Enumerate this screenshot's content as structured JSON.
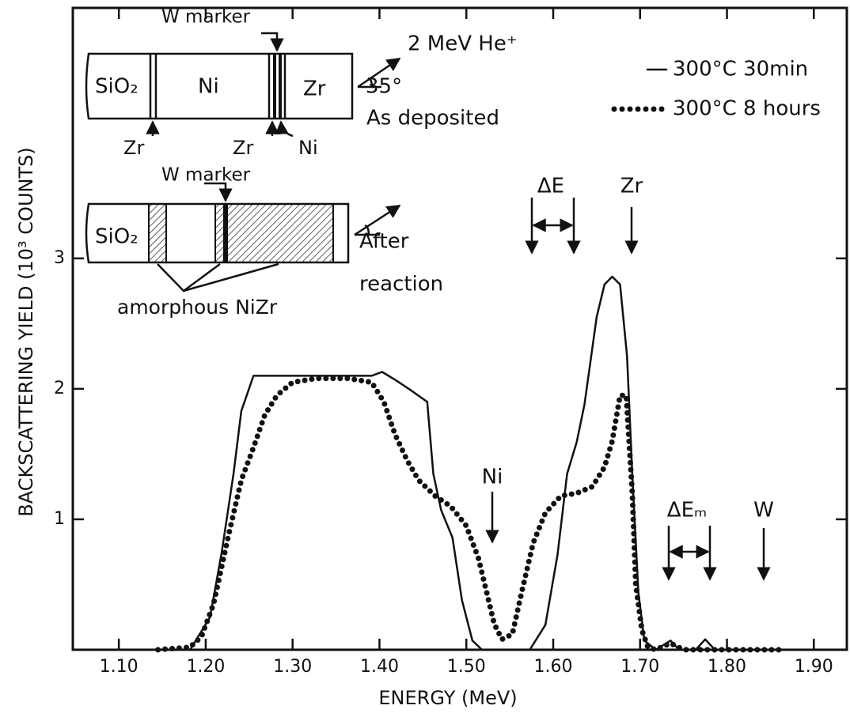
{
  "chart_data": {
    "type": "line",
    "x_label": "ENERGY (MeV)",
    "y_label": "BACKSCATTERING YIELD (10³ COUNTS)",
    "xlim": [
      1.047,
      1.938
    ],
    "ylim": [
      0,
      4.92
    ],
    "xticks": [
      {
        "value": 1.1,
        "label": "1.10"
      },
      {
        "value": 1.2,
        "label": "1.20"
      },
      {
        "value": 1.3,
        "label": "1.30"
      },
      {
        "value": 1.4,
        "label": "1.40"
      },
      {
        "value": 1.5,
        "label": "1.50"
      },
      {
        "value": 1.6,
        "label": "1.60"
      },
      {
        "value": 1.7,
        "label": "1.70"
      },
      {
        "value": 1.8,
        "label": "1.80"
      },
      {
        "value": 1.9,
        "label": "1.90"
      }
    ],
    "yticks": [
      1,
      2,
      3
    ],
    "legend": "upper right",
    "series": [
      {
        "name": "300°C  30min",
        "style": "solid",
        "color": "#111111",
        "x": [
          1.047,
          1.182,
          1.205,
          1.218,
          1.232,
          1.241,
          1.255,
          1.391,
          1.403,
          1.418,
          1.436,
          1.455,
          1.462,
          1.471,
          1.484,
          1.495,
          1.507,
          1.518,
          1.573,
          1.591,
          1.605,
          1.616,
          1.627,
          1.636,
          1.65,
          1.659,
          1.668,
          1.677,
          1.685,
          1.691,
          1.698,
          1.705,
          1.718,
          1.735,
          1.745,
          1.764,
          1.775,
          1.786,
          1.86
        ],
        "values": [
          0,
          0,
          0.25,
          0.73,
          1.35,
          1.83,
          2.1,
          2.1,
          2.13,
          2.07,
          1.99,
          1.9,
          1.35,
          1.07,
          0.86,
          0.38,
          0.07,
          0,
          0,
          0.19,
          0.73,
          1.35,
          1.59,
          1.88,
          2.55,
          2.8,
          2.86,
          2.8,
          2.25,
          1.35,
          0.44,
          0.07,
          0,
          0.07,
          0,
          0,
          0.08,
          0,
          0
        ]
      },
      {
        "name": "300°C  8 hours",
        "style": "dotted",
        "color": "#111111",
        "x": [
          1.145,
          1.182,
          1.195,
          1.209,
          1.227,
          1.241,
          1.255,
          1.268,
          1.282,
          1.3,
          1.327,
          1.364,
          1.391,
          1.405,
          1.418,
          1.432,
          1.445,
          1.464,
          1.482,
          1.5,
          1.514,
          1.523,
          1.532,
          1.541,
          1.553,
          1.564,
          1.577,
          1.591,
          1.609,
          1.627,
          1.645,
          1.659,
          1.668,
          1.677,
          1.684,
          1.691,
          1.695,
          1.702,
          1.709,
          1.718,
          1.735,
          1.75,
          1.782,
          1.864
        ],
        "values": [
          0,
          0.02,
          0.1,
          0.35,
          0.9,
          1.3,
          1.55,
          1.8,
          1.95,
          2.05,
          2.08,
          2.08,
          2.05,
          1.9,
          1.65,
          1.45,
          1.3,
          1.18,
          1.1,
          0.95,
          0.7,
          0.45,
          0.2,
          0.08,
          0.12,
          0.45,
          0.82,
          1.05,
          1.18,
          1.2,
          1.25,
          1.4,
          1.6,
          1.95,
          1.95,
          1.2,
          0.5,
          0.15,
          0.02,
          0,
          0.05,
          0,
          0,
          0
        ]
      }
    ],
    "annotations": [
      "W marker",
      "2 MeV He⁺",
      "35°",
      "SiO₂",
      "Ni",
      "Zr",
      "As deposited",
      "Zr",
      "Zr",
      "Ni",
      "W marker",
      "SiO₂",
      "After",
      "reaction",
      "amorphous NiZr",
      "ΔE",
      "Zr",
      "Ni",
      "ΔEₘ",
      "W"
    ]
  }
}
